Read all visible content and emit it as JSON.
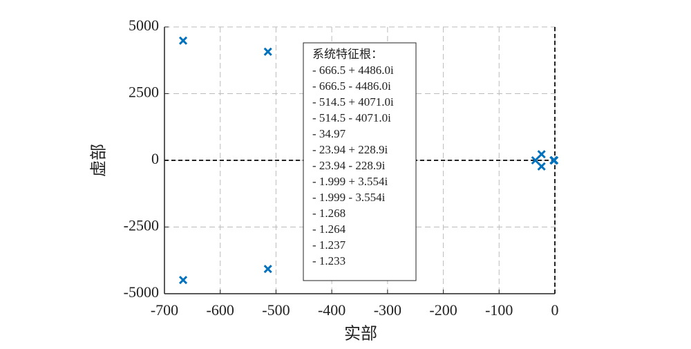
{
  "chart_data": {
    "type": "scatter",
    "xlabel": "实部",
    "ylabel": "虚部",
    "xlim": [
      -700,
      0
    ],
    "ylim": [
      -5000,
      5000
    ],
    "xticks": [
      -700,
      -600,
      -500,
      -400,
      -300,
      -200,
      -100,
      0
    ],
    "yticks": [
      -5000,
      -2500,
      0,
      2500,
      5000
    ],
    "grid": true,
    "series": [
      {
        "color": "#0072BD",
        "x": [
          -666.5,
          -666.5,
          -514.5,
          -514.5,
          -34.97,
          -23.94,
          -23.94,
          -1.999,
          -1.999,
          -1.268,
          -1.264,
          -1.237,
          -1.233
        ],
        "values": [
          4486.0,
          -4486.0,
          4071.0,
          -4071.0,
          0,
          228.9,
          -228.9,
          3.554,
          -3.554,
          0,
          0,
          0,
          0
        ]
      }
    ],
    "annotation": {
      "title": "系统特征根：",
      "lines": [
        "- 666.5 + 4486.0i",
        "- 666.5 - 4486.0i",
        "- 514.5 + 4071.0i",
        "- 514.5 - 4071.0i",
        "- 34.97",
        "- 23.94 + 228.9i",
        "- 23.94 - 228.9i",
        "- 1.999 + 3.554i",
        "- 1.999 - 3.554i",
        "- 1.268",
        "- 1.264",
        "- 1.237",
        "- 1.233"
      ]
    }
  }
}
